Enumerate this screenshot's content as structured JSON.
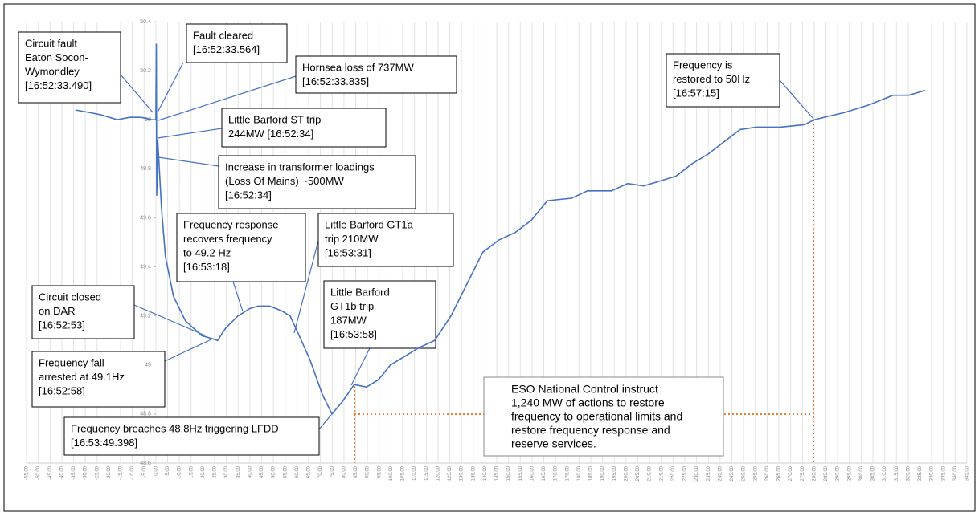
{
  "chart_data": {
    "type": "line",
    "color": "#4472c4",
    "grid": "x",
    "x": [
      -34.2,
      -28.4,
      -23.2,
      -16.4,
      -11.3,
      -6.2,
      -1.7,
      0,
      0.2,
      0.4,
      0.8,
      2.4,
      4.1,
      7.5,
      12.6,
      19.5,
      26.3,
      29.7,
      34.9,
      40,
      43.4,
      48.5,
      53.7,
      57.1,
      60.5,
      65.6,
      70.8,
      74.9,
      79.3,
      84.4,
      89.6,
      94.7,
      99.8,
      105,
      111.8,
      118.6,
      125.5,
      132.3,
      139.1,
      146,
      152.8,
      159.7,
      166.5,
      176.8,
      183.6,
      193.8,
      200.7,
      207.5,
      214.4,
      221.2,
      228,
      234.9,
      241.7,
      248.5,
      255.4,
      265.6,
      275.9,
      280,
      293,
      303.2,
      313.5,
      320.3,
      327.2
    ],
    "values": [
      50.04,
      50.03,
      50.02,
      50.0,
      50.01,
      50.01,
      50.0,
      50.0,
      50.31,
      49.69,
      49.92,
      49.64,
      49.44,
      49.28,
      49.18,
      49.12,
      49.1,
      49.15,
      49.2,
      49.23,
      49.24,
      49.24,
      49.22,
      49.2,
      49.13,
      49.02,
      48.88,
      48.8,
      48.85,
      48.92,
      48.91,
      48.94,
      49.0,
      49.03,
      49.07,
      49.1,
      49.2,
      49.33,
      49.46,
      49.51,
      49.54,
      49.59,
      49.67,
      49.68,
      49.71,
      49.71,
      49.74,
      49.73,
      49.75,
      49.77,
      49.82,
      49.86,
      49.91,
      49.96,
      49.97,
      49.97,
      49.98,
      50.0,
      50.03,
      50.06,
      50.1,
      50.1,
      50.12
    ],
    "ylim": [
      48.6,
      50.4
    ],
    "yticks": [
      48.6,
      48.8,
      49,
      49.2,
      49.4,
      49.6,
      49.8,
      50,
      50.2,
      50.4
    ],
    "xlim": [
      -55,
      345
    ],
    "xticks": [
      {
        "value": -55,
        "label": "-55.00"
      },
      {
        "value": -50,
        "label": "-50.00"
      },
      {
        "value": -45,
        "label": "-45.00"
      },
      {
        "value": -40,
        "label": "-40.00"
      },
      {
        "value": -35,
        "label": "-35.00"
      },
      {
        "value": -30,
        "label": "-30.00"
      },
      {
        "value": -25,
        "label": "-25.00"
      },
      {
        "value": -20,
        "label": "-20.00"
      },
      {
        "value": -15,
        "label": "-15.00"
      },
      {
        "value": -10,
        "label": "-10.00"
      },
      {
        "value": -5,
        "label": "-5.00"
      },
      {
        "value": 0,
        "label": "0.00"
      },
      {
        "value": 5,
        "label": "5.00"
      },
      {
        "value": 10,
        "label": "10.00"
      },
      {
        "value": 15,
        "label": "15.00"
      },
      {
        "value": 20,
        "label": "20.00"
      },
      {
        "value": 25,
        "label": "25.00"
      },
      {
        "value": 30,
        "label": "30.00"
      },
      {
        "value": 35,
        "label": "35.00"
      },
      {
        "value": 40,
        "label": "40.00"
      },
      {
        "value": 45,
        "label": "45.00"
      },
      {
        "value": 50,
        "label": "50.00"
      },
      {
        "value": 55,
        "label": "55.00"
      },
      {
        "value": 60,
        "label": "60.00"
      },
      {
        "value": 65,
        "label": "65.00"
      },
      {
        "value": 70,
        "label": "70.00"
      },
      {
        "value": 75,
        "label": "75.00"
      },
      {
        "value": 80,
        "label": "80.00"
      },
      {
        "value": 85,
        "label": "85.00"
      },
      {
        "value": 90,
        "label": "90.00"
      },
      {
        "value": 95,
        "label": "95.00"
      },
      {
        "value": 100,
        "label": "100.00"
      },
      {
        "value": 105,
        "label": "105.00"
      },
      {
        "value": 110,
        "label": "110.00"
      },
      {
        "value": 115,
        "label": "115.00"
      },
      {
        "value": 120,
        "label": "120.00"
      },
      {
        "value": 125,
        "label": "125.00"
      },
      {
        "value": 130,
        "label": "130.00"
      },
      {
        "value": 135,
        "label": "135.00"
      },
      {
        "value": 140,
        "label": "140.00"
      },
      {
        "value": 145,
        "label": "145.00"
      },
      {
        "value": 150,
        "label": "150.00"
      },
      {
        "value": 155,
        "label": "155.00"
      },
      {
        "value": 160,
        "label": "160.00"
      },
      {
        "value": 165,
        "label": "165.00"
      },
      {
        "value": 170,
        "label": "170.00"
      },
      {
        "value": 175,
        "label": "175.00"
      },
      {
        "value": 180,
        "label": "180.00"
      },
      {
        "value": 185,
        "label": "185.00"
      },
      {
        "value": 190,
        "label": "190.00"
      },
      {
        "value": 195,
        "label": "195.00"
      },
      {
        "value": 200,
        "label": "200.00"
      },
      {
        "value": 205,
        "label": "205.00"
      },
      {
        "value": 210,
        "label": "210.00"
      },
      {
        "value": 215,
        "label": "215.00"
      },
      {
        "value": 220,
        "label": "220.00"
      },
      {
        "value": 225,
        "label": "225.00"
      },
      {
        "value": 230,
        "label": "230.00"
      },
      {
        "value": 235,
        "label": "235.00"
      },
      {
        "value": 240,
        "label": "240.00"
      },
      {
        "value": 245,
        "label": "245.00"
      },
      {
        "value": 250,
        "label": "250.00"
      },
      {
        "value": 255,
        "label": "255.00"
      },
      {
        "value": 260,
        "label": "260.00"
      },
      {
        "value": 265,
        "label": "265.00"
      },
      {
        "value": 270,
        "label": "270.00"
      },
      {
        "value": 275,
        "label": "275.00"
      },
      {
        "value": 280,
        "label": "280.00"
      },
      {
        "value": 285,
        "label": "285.00"
      },
      {
        "value": 290,
        "label": "290.00"
      },
      {
        "value": 295,
        "label": "295.00"
      },
      {
        "value": 300,
        "label": "300.00"
      },
      {
        "value": 305,
        "label": "305.00"
      },
      {
        "value": 310,
        "label": "310.00"
      },
      {
        "value": 315,
        "label": "315.00"
      },
      {
        "value": 320,
        "label": "320.00"
      },
      {
        "value": 325,
        "label": "325.00"
      },
      {
        "value": 330,
        "label": "330.00"
      },
      {
        "value": 335,
        "label": "335.00"
      },
      {
        "value": 340,
        "label": "340.00"
      },
      {
        "value": 345,
        "label": "345.00"
      }
    ],
    "annotations": [
      {
        "lines": [
          "Circuit fault",
          "Eaton Socon-",
          "Wymondley",
          "[16:52:33.490]"
        ]
      },
      {
        "lines": [
          "Fault cleared",
          "[16:52:33.564]"
        ]
      },
      {
        "lines": [
          "Hornsea loss of 737MW",
          "[16:52:33.835]"
        ]
      },
      {
        "lines": [
          "Little Barford ST trip",
          "244MW [16:52:34]"
        ]
      },
      {
        "lines": [
          "Increase in transformer loadings",
          "(Loss Of Mains) ~500MW",
          "[16:52:34]"
        ]
      },
      {
        "lines": [
          "Frequency response",
          "recovers frequency",
          "to 49.2 Hz",
          "[16:53:18]"
        ]
      },
      {
        "lines": [
          "Little Barford GT1a",
          "trip 210MW",
          "[16:53:31]"
        ]
      },
      {
        "lines": [
          "Circuit closed",
          "on DAR",
          "[16:52:53]"
        ]
      },
      {
        "lines": [
          "Little Barford",
          "GT1b trip",
          "187MW",
          "[16:53:58]"
        ]
      },
      {
        "lines": [
          "Frequency fall",
          "arrested at 49.1Hz",
          "[16:52:58]"
        ]
      },
      {
        "lines": [
          "Frequency breaches 48.8Hz triggering LFDD",
          "[16:53:49.398]"
        ]
      },
      {
        "lines": [
          "Frequency is",
          "restored to 50Hz",
          "[16:57:15]"
        ]
      },
      {
        "lines": [
          "ESO National Control instruct",
          "1,240 MW of actions to restore",
          "frequency to operational limits and",
          "restore frequency response and",
          "reserve services."
        ]
      }
    ]
  }
}
